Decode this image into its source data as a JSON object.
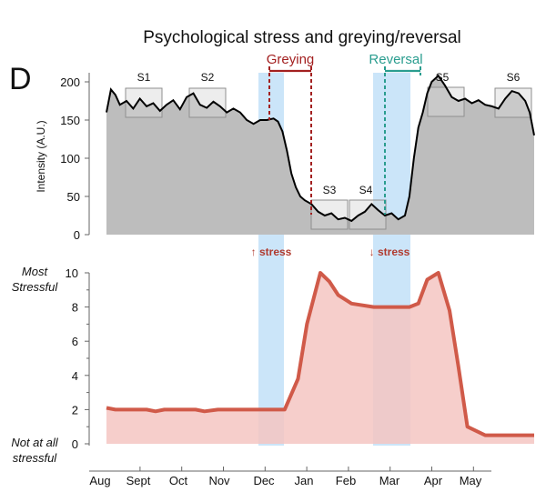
{
  "colors": {
    "intensity_fill": "#bdbdbd",
    "intensity_line": "#000000",
    "stress_fill": "#f4c6c2",
    "stress_line": "#d05a49",
    "band": "#b9dcf7",
    "greying": "#a32020",
    "reversal": "#2a9d8f",
    "segment_box": "#d6d6d6"
  },
  "chart_data": [
    {
      "type": "area",
      "panel": "D",
      "title": "Psychological stress and greying/reversal",
      "xlabel": "",
      "ylabel": "Intensity (A.U.)",
      "ylim": [
        0,
        200
      ],
      "yticks": [
        "0",
        "50",
        "100",
        "150",
        "200"
      ],
      "xlim": [
        0,
        9.6
      ],
      "series": [
        {
          "name": "Intensity",
          "x": [
            0,
            0.1,
            0.2,
            0.3,
            0.45,
            0.6,
            0.75,
            0.9,
            1.05,
            1.2,
            1.35,
            1.5,
            1.65,
            1.8,
            1.95,
            2.1,
            2.25,
            2.4,
            2.55,
            2.7,
            2.85,
            3.0,
            3.15,
            3.3,
            3.45,
            3.6,
            3.75,
            3.85,
            3.95,
            4.05,
            4.15,
            4.25,
            4.35,
            4.45,
            4.6,
            4.75,
            4.9,
            5.05,
            5.2,
            5.35,
            5.5,
            5.65,
            5.8,
            5.95,
            6.1,
            6.25,
            6.4,
            6.55,
            6.7,
            6.8,
            6.9,
            7.0,
            7.1,
            7.2,
            7.3,
            7.45,
            7.6,
            7.75,
            7.9,
            8.05,
            8.2,
            8.35,
            8.5,
            8.65,
            8.8,
            8.95,
            9.1,
            9.25,
            9.4,
            9.5,
            9.6
          ],
          "values": [
            160,
            190,
            183,
            170,
            175,
            165,
            178,
            168,
            172,
            162,
            170,
            176,
            164,
            180,
            185,
            170,
            166,
            174,
            168,
            160,
            165,
            160,
            150,
            145,
            150,
            150,
            152,
            148,
            135,
            110,
            80,
            62,
            50,
            45,
            40,
            30,
            25,
            28,
            20,
            22,
            18,
            25,
            30,
            40,
            32,
            25,
            28,
            20,
            25,
            50,
            100,
            140,
            160,
            185,
            200,
            208,
            195,
            180,
            175,
            178,
            172,
            176,
            170,
            168,
            165,
            178,
            188,
            185,
            175,
            160,
            130
          ]
        }
      ],
      "segments": [
        "S1",
        "S2",
        "S3",
        "S4",
        "S5",
        "S6"
      ],
      "annotations": [
        "Greying",
        "Reversal"
      ]
    },
    {
      "type": "area",
      "title": "",
      "xlabel": "",
      "ylabel": "",
      "ylim": [
        0,
        10
      ],
      "yticks": [
        "0",
        "2",
        "4",
        "6",
        "8",
        "10"
      ],
      "xlim": [
        0,
        9.6
      ],
      "ytop_label": [
        "Most",
        "Stressful"
      ],
      "ybottom_label": [
        "Not at all",
        "stressful"
      ],
      "categories": [
        "Aug",
        "Sept",
        "Oct",
        "Nov",
        "Dec",
        "Jan",
        "Feb",
        "Mar",
        "Apr",
        "May"
      ],
      "series": [
        {
          "name": "Stress",
          "x": [
            0,
            0.2,
            0.5,
            0.9,
            1.1,
            1.3,
            1.6,
            2.0,
            2.2,
            2.5,
            3.0,
            3.5,
            4.0,
            4.3,
            4.5,
            4.8,
            5.0,
            5.2,
            5.5,
            6.0,
            6.5,
            6.8,
            7.0,
            7.2,
            7.45,
            7.7,
            7.9,
            8.1,
            8.5,
            9.0,
            9.6
          ],
          "values": [
            2.1,
            2.0,
            2.0,
            2.0,
            1.9,
            2.0,
            2.0,
            2.0,
            1.9,
            2.0,
            2.0,
            2.0,
            2.0,
            3.8,
            7.0,
            10.0,
            9.5,
            8.7,
            8.2,
            8.0,
            8.0,
            8.0,
            8.2,
            9.6,
            10.0,
            7.8,
            4.5,
            1.0,
            0.5,
            0.5,
            0.5
          ]
        }
      ],
      "annotations": [
        "↑ stress",
        "↓ stress"
      ]
    }
  ]
}
